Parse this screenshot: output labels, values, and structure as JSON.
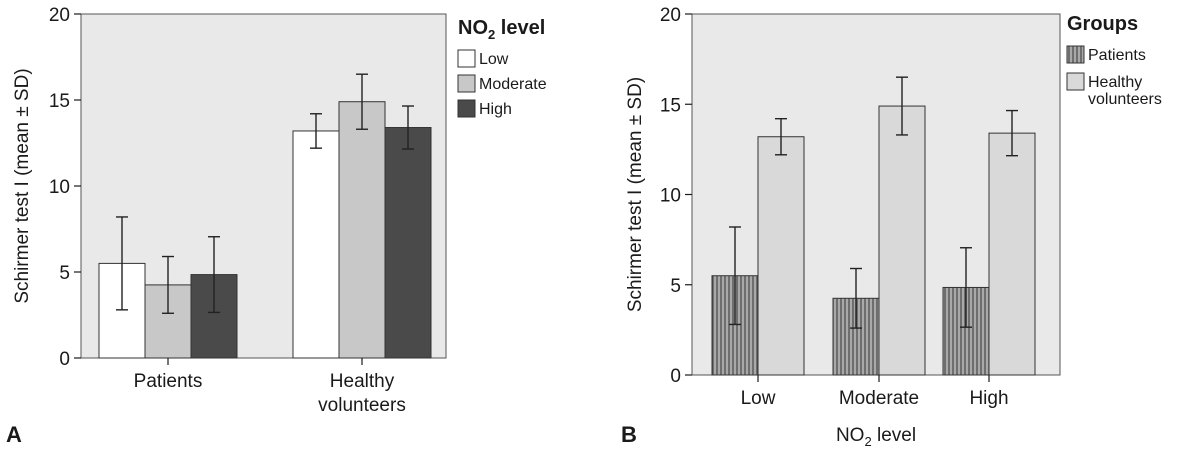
{
  "chart_data": [
    {
      "type": "bar",
      "panel_label": "A",
      "ylabel": "Schirmer test I (mean ± SD)",
      "xlabel": "",
      "ylim": [
        0,
        20
      ],
      "yticks": [
        "0",
        "5",
        "10",
        "15",
        "20"
      ],
      "categories": [
        "Patients",
        "Healthy volunteers"
      ],
      "category_lines": [
        [
          "Patients"
        ],
        [
          "Healthy",
          "volunteers"
        ]
      ],
      "legend": {
        "title_main": "NO",
        "title_sub": "2",
        "title_rest": " level",
        "placement": "top-right outside"
      },
      "series": [
        {
          "name": "Low",
          "color": "#ffffff",
          "values": [
            5.5,
            13.2
          ],
          "sd": [
            2.7,
            1.0
          ]
        },
        {
          "name": "Moderate",
          "color": "#c8c8c8",
          "values": [
            4.25,
            14.9
          ],
          "sd": [
            1.65,
            1.6
          ]
        },
        {
          "name": "High",
          "color": "#4a4a4a",
          "values": [
            4.85,
            13.4
          ],
          "sd": [
            2.2,
            1.25
          ]
        }
      ]
    },
    {
      "type": "bar",
      "panel_label": "B",
      "ylabel": "Schirmer test I (mean ± SD)",
      "xlabel_main": "NO",
      "xlabel_sub": "2",
      "xlabel_rest": " level",
      "ylim": [
        0,
        20
      ],
      "yticks": [
        "0",
        "5",
        "10",
        "15",
        "20"
      ],
      "categories": [
        "Low",
        "Moderate",
        "High"
      ],
      "category_lines": [
        [
          "Low"
        ],
        [
          "Moderate"
        ],
        [
          "High"
        ]
      ],
      "legend": {
        "title_main": "Groups",
        "title_sub": "",
        "title_rest": "",
        "placement": "top-right outside"
      },
      "series": [
        {
          "name": "Patients",
          "label_lines": [
            "Patients"
          ],
          "color": "#8a8a8a",
          "pattern": "vertical-lines",
          "values": [
            5.5,
            4.25,
            4.85
          ],
          "sd": [
            2.7,
            1.65,
            2.2
          ]
        },
        {
          "name": "Healthy volunteers",
          "label_lines": [
            "Healthy",
            "volunteers"
          ],
          "color": "#d9d9d9",
          "values": [
            13.2,
            14.9,
            13.4
          ],
          "sd": [
            1.0,
            1.6,
            1.25
          ]
        }
      ]
    }
  ]
}
